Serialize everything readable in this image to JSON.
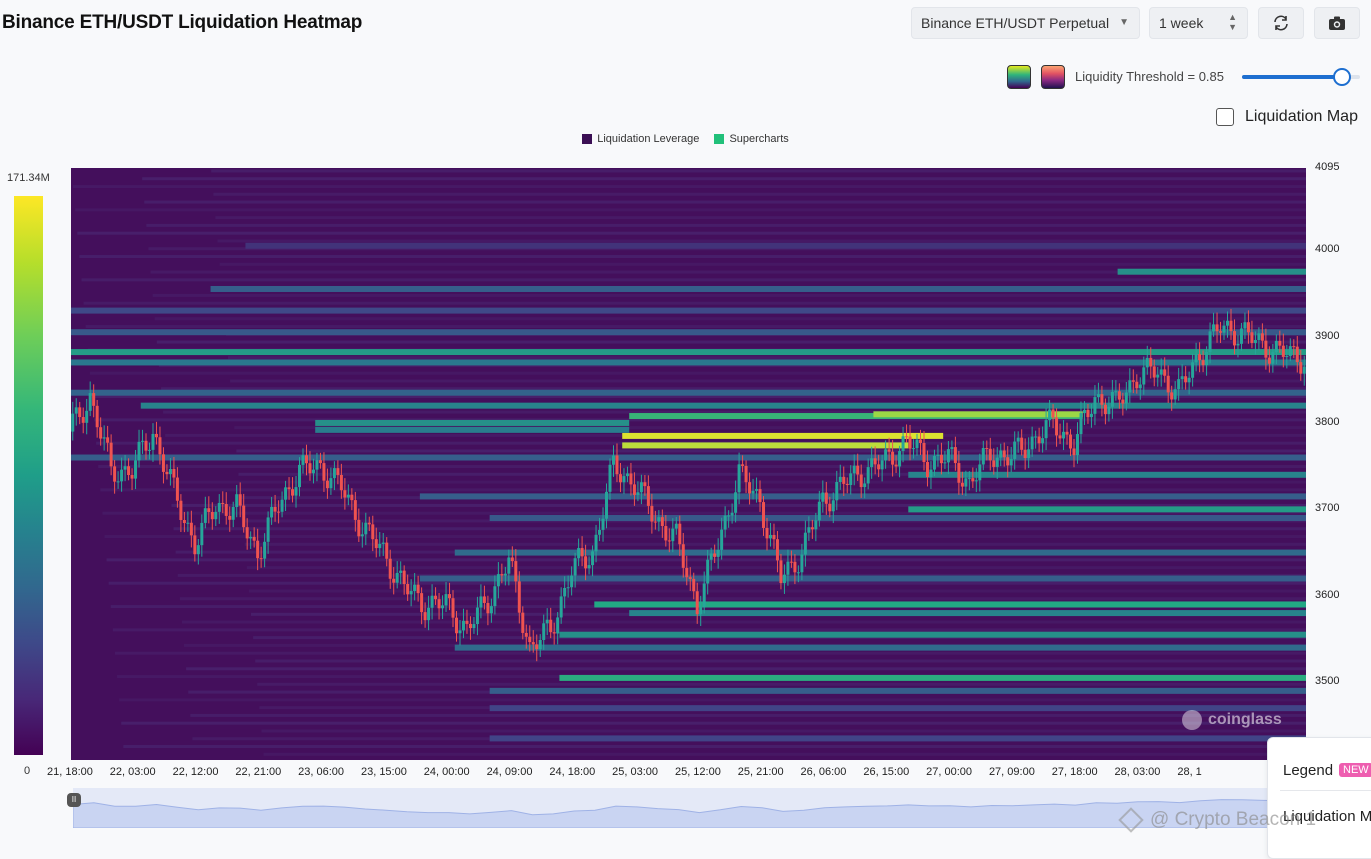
{
  "header": {
    "title": "Binance ETH/USDT Liquidation Heatmap",
    "exchange_select": "Binance ETH/USDT Perpetual",
    "range_select": "1 week"
  },
  "controls": {
    "threshold_label": "Liquidity Threshold = 0.85",
    "threshold_value": 0.85,
    "liquidation_map_label": "Liquidation Map",
    "liquidation_map_checked": false
  },
  "legend": {
    "items": [
      {
        "label": "Liquidation Leverage",
        "color": "#3b0f54"
      },
      {
        "label": "Supercharts",
        "color": "#21c07a"
      }
    ]
  },
  "colorbar": {
    "max_label": "171.34M",
    "min_label": "0"
  },
  "watermark": "coinglass",
  "side_panel": {
    "legend_label": "Legend",
    "badge": "NEW",
    "liquidation_label": "Liquidation M"
  },
  "credit": "@ Crypto Beacon 1",
  "chart_data": {
    "type": "heatmap",
    "title": "Binance ETH/USDT Liquidation Heatmap",
    "colorscale": "viridis",
    "background_color": "#440f5c",
    "value_range": [
      0,
      171340000
    ],
    "ylim": [
      3410,
      4095
    ],
    "yticks": [
      3500,
      3600,
      3700,
      3800,
      3900,
      4000,
      4095
    ],
    "xlim_hours": [
      0,
      177
    ],
    "xtick_labels": [
      "21, 18:00",
      "22, 03:00",
      "22, 12:00",
      "22, 21:00",
      "23, 06:00",
      "23, 15:00",
      "24, 00:00",
      "24, 09:00",
      "24, 18:00",
      "25, 03:00",
      "25, 12:00",
      "25, 21:00",
      "26, 06:00",
      "26, 15:00",
      "27, 00:00",
      "27, 09:00",
      "27, 18:00",
      "28, 03:00",
      "28, 1"
    ],
    "xtick_hours": [
      0,
      9,
      18,
      27,
      36,
      45,
      54,
      63,
      72,
      81,
      90,
      99,
      108,
      117,
      126,
      135,
      144,
      153,
      162
    ],
    "liquidity_bands": [
      {
        "price": 3808,
        "start": 80,
        "end": 145,
        "intensity": 0.65
      },
      {
        "price": 3810,
        "start": 115,
        "end": 145,
        "intensity": 0.85
      },
      {
        "price": 3785,
        "start": 79,
        "end": 125,
        "intensity": 0.95
      },
      {
        "price": 3774,
        "start": 79,
        "end": 120,
        "intensity": 0.9
      },
      {
        "price": 3800,
        "start": 35,
        "end": 80,
        "intensity": 0.5
      },
      {
        "price": 3792,
        "start": 35,
        "end": 80,
        "intensity": 0.42
      },
      {
        "price": 3820,
        "start": 10,
        "end": 177,
        "intensity": 0.45
      },
      {
        "price": 3835,
        "start": 0,
        "end": 177,
        "intensity": 0.32
      },
      {
        "price": 3870,
        "start": 0,
        "end": 177,
        "intensity": 0.4
      },
      {
        "price": 3882,
        "start": 0,
        "end": 177,
        "intensity": 0.55
      },
      {
        "price": 3905,
        "start": 0,
        "end": 177,
        "intensity": 0.28
      },
      {
        "price": 3930,
        "start": 0,
        "end": 177,
        "intensity": 0.22
      },
      {
        "price": 3955,
        "start": 20,
        "end": 177,
        "intensity": 0.3
      },
      {
        "price": 3975,
        "start": 150,
        "end": 177,
        "intensity": 0.5
      },
      {
        "price": 4005,
        "start": 25,
        "end": 177,
        "intensity": 0.15
      },
      {
        "price": 3760,
        "start": 0,
        "end": 177,
        "intensity": 0.3
      },
      {
        "price": 3740,
        "start": 120,
        "end": 177,
        "intensity": 0.45
      },
      {
        "price": 3715,
        "start": 50,
        "end": 177,
        "intensity": 0.3
      },
      {
        "price": 3700,
        "start": 120,
        "end": 177,
        "intensity": 0.55
      },
      {
        "price": 3690,
        "start": 60,
        "end": 177,
        "intensity": 0.28
      },
      {
        "price": 3650,
        "start": 55,
        "end": 177,
        "intensity": 0.35
      },
      {
        "price": 3620,
        "start": 50,
        "end": 177,
        "intensity": 0.3
      },
      {
        "price": 3590,
        "start": 75,
        "end": 177,
        "intensity": 0.6
      },
      {
        "price": 3580,
        "start": 80,
        "end": 177,
        "intensity": 0.45
      },
      {
        "price": 3555,
        "start": 70,
        "end": 177,
        "intensity": 0.5
      },
      {
        "price": 3540,
        "start": 55,
        "end": 177,
        "intensity": 0.35
      },
      {
        "price": 3505,
        "start": 70,
        "end": 177,
        "intensity": 0.62
      },
      {
        "price": 3490,
        "start": 60,
        "end": 177,
        "intensity": 0.3
      },
      {
        "price": 3470,
        "start": 60,
        "end": 177,
        "intensity": 0.2
      },
      {
        "price": 3435,
        "start": 60,
        "end": 177,
        "intensity": 0.2
      }
    ],
    "price_path": {
      "hours": [
        0,
        3,
        6,
        9,
        12,
        15,
        18,
        21,
        24,
        27,
        30,
        33,
        36,
        39,
        42,
        45,
        48,
        51,
        54,
        57,
        60,
        63,
        66,
        69,
        72,
        75,
        78,
        81,
        84,
        87,
        90,
        93,
        96,
        99,
        102,
        105,
        108,
        111,
        114,
        117,
        120,
        123,
        126,
        129,
        132,
        135,
        138,
        141,
        144,
        147,
        150,
        153,
        156,
        159,
        162,
        165,
        168,
        171,
        174,
        177
      ],
      "prices": [
        3790,
        3830,
        3745,
        3745,
        3790,
        3720,
        3660,
        3705,
        3700,
        3650,
        3705,
        3745,
        3750,
        3725,
        3680,
        3650,
        3610,
        3590,
        3590,
        3560,
        3595,
        3640,
        3540,
        3560,
        3630,
        3650,
        3750,
        3730,
        3690,
        3665,
        3590,
        3660,
        3740,
        3710,
        3620,
        3650,
        3710,
        3730,
        3745,
        3755,
        3780,
        3755,
        3760,
        3730,
        3765,
        3760,
        3780,
        3800,
        3775,
        3830,
        3820,
        3855,
        3860,
        3835,
        3880,
        3910,
        3905,
        3890,
        3880,
        3875
      ]
    }
  }
}
